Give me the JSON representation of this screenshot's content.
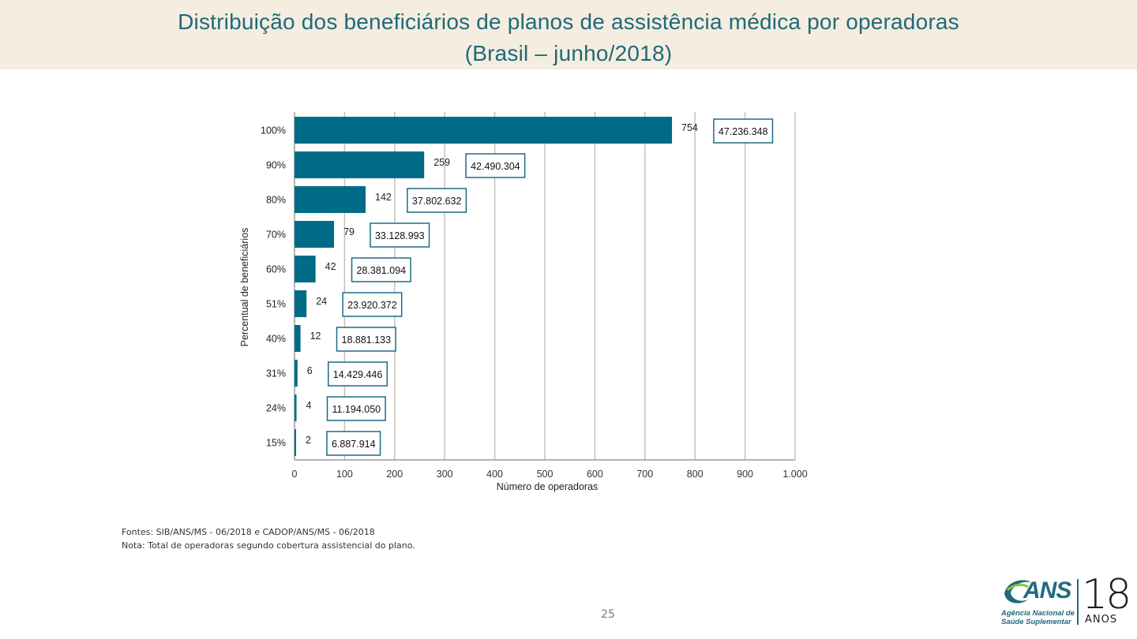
{
  "title": {
    "line1": "Distribuição dos beneficiários de planos de assistência médica por operadoras",
    "line2": "(Brasil – junho/2018)"
  },
  "colors": {
    "bar": "#006b86",
    "box_border": "#1d6a86",
    "grid": "#c8c0b6",
    "title": "#1f6a7a",
    "band": "#f4ede0"
  },
  "chart_data": {
    "type": "bar",
    "orientation": "horizontal",
    "categories": [
      "100%",
      "90%",
      "80%",
      "70%",
      "60%",
      "51%",
      "40%",
      "31%",
      "24%",
      "15%"
    ],
    "values": [
      754,
      259,
      142,
      79,
      42,
      24,
      12,
      6,
      4,
      2
    ],
    "beneficiaries": [
      "47.236.348",
      "42.490.304",
      "37.802.632",
      "33.128.993",
      "28.381.094",
      "23.920.372",
      "18.881.133",
      "14.429.446",
      "11.194.050",
      "6.887.914"
    ],
    "xlabel": "Número de operadoras",
    "ylabel": "Percentual de beneficiários",
    "xlim": [
      0,
      1000
    ],
    "xticks": [
      0,
      100,
      200,
      300,
      400,
      500,
      600,
      700,
      800,
      900,
      1000
    ],
    "xtick_labels": [
      "0",
      "100",
      "200",
      "300",
      "400",
      "500",
      "600",
      "700",
      "800",
      "900",
      "1.000"
    ],
    "grid": "vertical"
  },
  "notes": {
    "source": "Fontes: SIB/ANS/MS - 06/2018 e CADOP/ANS/MS - 06/2018",
    "note": "Nota: Total de operadoras segundo cobertura assistencial do plano."
  },
  "page_number": "25",
  "logo": {
    "brand": "ANS",
    "agency_line1": "Agência Nacional de",
    "agency_line2": "Saúde Suplementar",
    "years": "18",
    "years_label": "ANOS"
  }
}
